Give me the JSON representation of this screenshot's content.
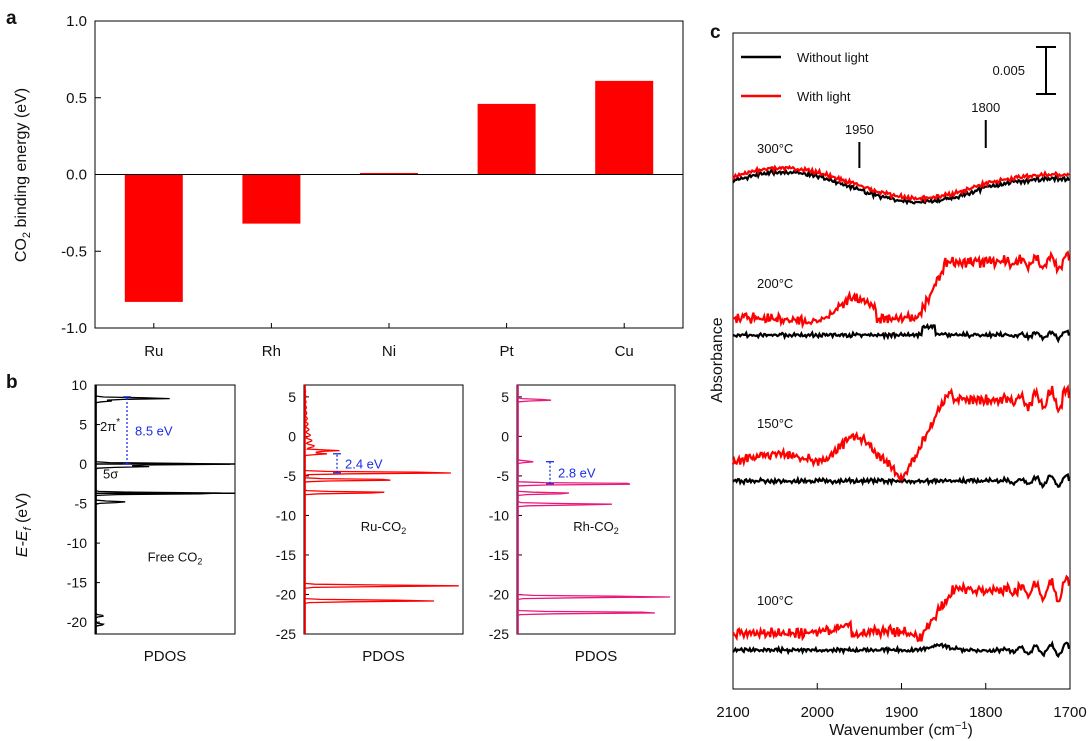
{
  "colors": {
    "red": "#ff0000",
    "pink": "#e8197a",
    "black": "#000000",
    "blue": "#1a2ee6"
  },
  "panel_a": {
    "letter": "a"
  },
  "panel_b": {
    "letter": "b"
  },
  "panel_c": {
    "letter": "c"
  },
  "chart_data": [
    {
      "panel": "a",
      "type": "bar",
      "categories": [
        "Ru",
        "Rh",
        "Ni",
        "Pt",
        "Cu"
      ],
      "values": [
        -0.83,
        -0.32,
        0.01,
        0.46,
        0.61
      ],
      "ylabel_main": "CO",
      "ylabel_sub": "2",
      "ylabel_tail": " binding energy (eV)",
      "ylim": [
        -1.0,
        1.0
      ],
      "yticks": [
        "1.0",
        "0.5",
        "0.0",
        "-0.5",
        "-1.0"
      ],
      "ytick_values": [
        1.0,
        0.5,
        0.0,
        -0.5,
        -1.0
      ],
      "color": "#ff0000"
    },
    {
      "panel": "b",
      "type": "bar",
      "orientation": "horizontal",
      "ylabel": "E-E",
      "ylabel_sub": "f",
      "ylabel_tail": " (eV)",
      "subplots": [
        {
          "name": "Free CO",
          "name_sub": "2",
          "xlabel": "PDOS",
          "ylim": [
            -21.5,
            10
          ],
          "yticks": [
            "10",
            "5",
            "0",
            "-5",
            "-10",
            "-15",
            "-20"
          ],
          "ytick_values": [
            10,
            5,
            0,
            -5,
            -10,
            -15,
            -20
          ],
          "color": "#000000",
          "peaks": [
            {
              "e": 8.3,
              "w": 0.55
            },
            {
              "e": 8.0,
              "w": 0.12
            },
            {
              "e": 0.0,
              "w": 1.0
            },
            {
              "e": -0.3,
              "w": 0.4
            },
            {
              "e": -3.7,
              "w": 1.0
            },
            {
              "e": -4.8,
              "w": 0.22
            },
            {
              "e": -19.2,
              "w": 0.06
            },
            {
              "e": -20.3,
              "w": 0.06
            }
          ],
          "annotations": [
            {
              "text": "2π",
              "sup": "*"
            },
            {
              "text": "5σ"
            },
            {
              "text": "8.5 eV",
              "from": 0.0,
              "to": 8.5
            }
          ]
        },
        {
          "name": "Ru-CO",
          "name_sub": "2",
          "xlabel": "PDOS",
          "ylim": [
            -25,
            6.5
          ],
          "yticks": [
            "5",
            "0",
            "-5",
            "-10",
            "-15",
            "-20",
            "-25"
          ],
          "ytick_values": [
            5,
            0,
            -5,
            -10,
            -15,
            -20,
            -25
          ],
          "color": "#ff0000",
          "peaks": [
            {
              "e": -1.8,
              "w": 0.22
            },
            {
              "e": -2.2,
              "w": 0.14
            },
            {
              "e": -4.6,
              "w": 1.0
            },
            {
              "e": -5.5,
              "w": 0.62
            },
            {
              "e": -7.1,
              "w": 0.56
            },
            {
              "e": -18.9,
              "w": 0.98
            },
            {
              "e": -20.8,
              "w": 0.86
            }
          ],
          "annotations": [
            {
              "text": "2.4 eV",
              "from": -4.6,
              "to": -2.2
            }
          ]
        },
        {
          "name": "Rh-CO",
          "name_sub": "2",
          "xlabel": "PDOS",
          "ylim": [
            -25,
            6.5
          ],
          "yticks": [
            "5",
            "0",
            "-5",
            "-10",
            "-15",
            "-20",
            "-25"
          ],
          "ytick_values": [
            5,
            0,
            -5,
            -10,
            -15,
            -20,
            -25
          ],
          "color": "#e8197a",
          "peaks": [
            {
              "e": 4.6,
              "w": 0.22
            },
            {
              "e": -3.2,
              "w": 0.1
            },
            {
              "e": -6.0,
              "w": 0.85
            },
            {
              "e": -7.2,
              "w": 0.36
            },
            {
              "e": -8.6,
              "w": 0.62
            },
            {
              "e": -20.3,
              "w": 1.0
            },
            {
              "e": -22.3,
              "w": 1.0
            }
          ],
          "annotations": [
            {
              "text": "2.8 eV",
              "from": -6.0,
              "to": -3.2
            }
          ]
        }
      ]
    },
    {
      "panel": "c",
      "type": "line",
      "xlabel": "Wavenumber (cm",
      "xlabel_sup": "−1",
      "xlabel_tail": ")",
      "ylabel": "Absorbance",
      "xlim": [
        2100,
        1700
      ],
      "xticks": [
        "2100",
        "2000",
        "1900",
        "1800",
        "1700"
      ],
      "xtick_values": [
        2100,
        2000,
        1900,
        1800,
        1700
      ],
      "legend": [
        {
          "name": "Without light",
          "color": "#000000"
        },
        {
          "name": "With light",
          "color": "#ff0000"
        }
      ],
      "scale_bar_label": "0.005",
      "peak_markers": [
        {
          "label": "1950",
          "x": 1950
        },
        {
          "label": "1800",
          "x": 1800
        }
      ],
      "temperatures": [
        "300°C",
        "200°C",
        "150°C",
        "100°C"
      ]
    }
  ]
}
